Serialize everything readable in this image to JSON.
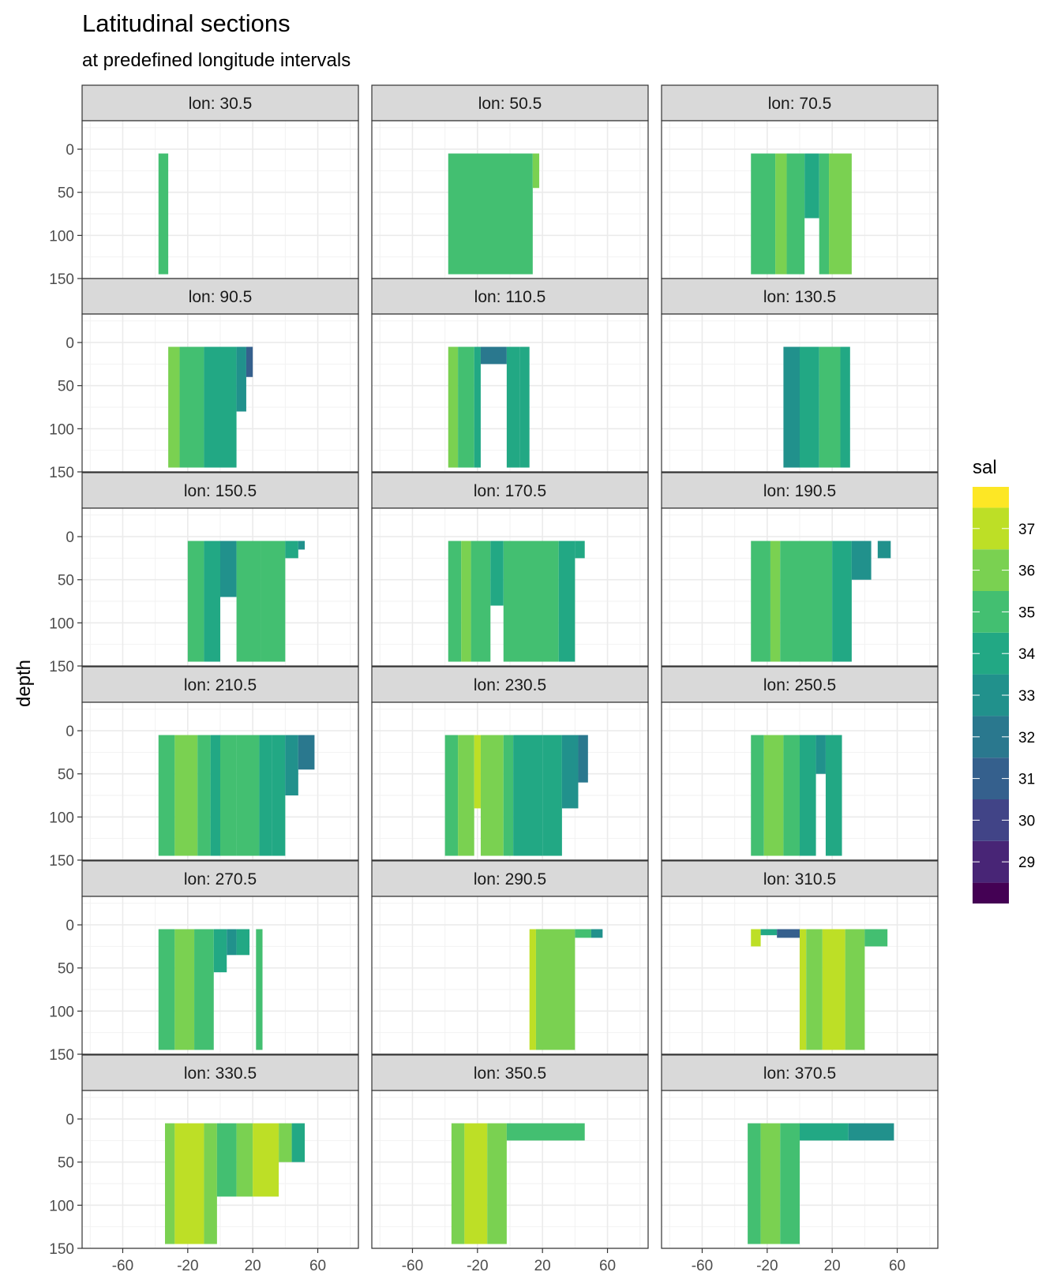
{
  "chart_data": {
    "type": "heatmap",
    "title": "Latitudinal sections",
    "subtitle": "at predefined longitude intervals",
    "xlabel": "",
    "ylabel": "depth",
    "x_ticks": [
      -60,
      -20,
      20,
      60
    ],
    "y_ticks": [
      0,
      50,
      100,
      150
    ],
    "xlim": [
      -85,
      85
    ],
    "ylim": [
      150,
      -33
    ],
    "legend": {
      "title": "sal",
      "position": "right",
      "levels": [
        28.5,
        29.5,
        30.5,
        31.5,
        32.5,
        33.5,
        34.5,
        35.5,
        36.5,
        37.5
      ],
      "labels": [
        "29",
        "30",
        "31",
        "32",
        "33",
        "34",
        "35",
        "36",
        "37"
      ],
      "colors": [
        "#440154",
        "#482576",
        "#414487",
        "#35608d",
        "#2a788e",
        "#21918c",
        "#22a884",
        "#43bf71",
        "#7ad151",
        "#bddf26",
        "#fde725"
      ]
    },
    "panels": [
      {
        "strip": "lon: 30.5",
        "bands": [
          {
            "x0": -38,
            "x1": -32,
            "ytop": 5,
            "ybot": 145,
            "sal": 35
          }
        ]
      },
      {
        "strip": "lon: 50.5",
        "bands": [
          {
            "x0": -38,
            "x1": 14,
            "ytop": 5,
            "ybot": 145,
            "sal": 35
          },
          {
            "x0": 14,
            "x1": 18,
            "ytop": 5,
            "ybot": 45,
            "sal": 36
          }
        ]
      },
      {
        "strip": "lon: 70.5",
        "bands": [
          {
            "x0": -30,
            "x1": -15,
            "ytop": 5,
            "ybot": 145,
            "sal": 35
          },
          {
            "x0": -15,
            "x1": -8,
            "ytop": 5,
            "ybot": 145,
            "sal": 36
          },
          {
            "x0": -8,
            "x1": 3,
            "ytop": 5,
            "ybot": 145,
            "sal": 35
          },
          {
            "x0": 3,
            "x1": 12,
            "ytop": 5,
            "ybot": 80,
            "sal": 34
          },
          {
            "x0": 12,
            "x1": 18,
            "ytop": 5,
            "ybot": 145,
            "sal": 35
          },
          {
            "x0": 18,
            "x1": 32,
            "ytop": 5,
            "ybot": 145,
            "sal": 36
          }
        ]
      },
      {
        "strip": "lon: 90.5",
        "bands": [
          {
            "x0": -32,
            "x1": -25,
            "ytop": 5,
            "ybot": 145,
            "sal": 36
          },
          {
            "x0": -25,
            "x1": -10,
            "ytop": 5,
            "ybot": 145,
            "sal": 35
          },
          {
            "x0": -10,
            "x1": 0,
            "ytop": 5,
            "ybot": 145,
            "sal": 34
          },
          {
            "x0": 0,
            "x1": 10,
            "ytop": 5,
            "ybot": 145,
            "sal": 34
          },
          {
            "x0": 10,
            "x1": 16,
            "ytop": 5,
            "ybot": 80,
            "sal": 33
          },
          {
            "x0": 16,
            "x1": 20,
            "ytop": 5,
            "ybot": 40,
            "sal": 31
          }
        ]
      },
      {
        "strip": "lon: 110.5",
        "bands": [
          {
            "x0": -38,
            "x1": -32,
            "ytop": 5,
            "ybot": 145,
            "sal": 36
          },
          {
            "x0": -32,
            "x1": -22,
            "ytop": 5,
            "ybot": 145,
            "sal": 35
          },
          {
            "x0": -22,
            "x1": -18,
            "ytop": 5,
            "ybot": 145,
            "sal": 34
          },
          {
            "x0": -18,
            "x1": -2,
            "ytop": 5,
            "ybot": 25,
            "sal": 32
          },
          {
            "x0": -2,
            "x1": 6,
            "ytop": 5,
            "ybot": 145,
            "sal": 34
          },
          {
            "x0": 6,
            "x1": 12,
            "ytop": 5,
            "ybot": 145,
            "sal": 34
          }
        ]
      },
      {
        "strip": "lon: 130.5",
        "bands": [
          {
            "x0": -10,
            "x1": 0,
            "ytop": 5,
            "ybot": 145,
            "sal": 33
          },
          {
            "x0": 0,
            "x1": 12,
            "ytop": 5,
            "ybot": 145,
            "sal": 34
          },
          {
            "x0": 12,
            "x1": 25,
            "ytop": 5,
            "ybot": 145,
            "sal": 35
          },
          {
            "x0": 25,
            "x1": 31,
            "ytop": 5,
            "ybot": 145,
            "sal": 34
          }
        ]
      },
      {
        "strip": "lon: 150.5",
        "bands": [
          {
            "x0": -20,
            "x1": -10,
            "ytop": 5,
            "ybot": 145,
            "sal": 35
          },
          {
            "x0": -10,
            "x1": 0,
            "ytop": 5,
            "ybot": 145,
            "sal": 34
          },
          {
            "x0": 0,
            "x1": 10,
            "ytop": 5,
            "ybot": 70,
            "sal": 33
          },
          {
            "x0": 10,
            "x1": 25,
            "ytop": 5,
            "ybot": 145,
            "sal": 35
          },
          {
            "x0": 25,
            "x1": 40,
            "ytop": 5,
            "ybot": 145,
            "sal": 35
          },
          {
            "x0": 40,
            "x1": 48,
            "ytop": 5,
            "ybot": 25,
            "sal": 34
          },
          {
            "x0": 48,
            "x1": 52,
            "ytop": 5,
            "ybot": 15,
            "sal": 33
          }
        ]
      },
      {
        "strip": "lon: 170.5",
        "bands": [
          {
            "x0": -38,
            "x1": -30,
            "ytop": 5,
            "ybot": 145,
            "sal": 35
          },
          {
            "x0": -30,
            "x1": -24,
            "ytop": 5,
            "ybot": 145,
            "sal": 36
          },
          {
            "x0": -24,
            "x1": -12,
            "ytop": 5,
            "ybot": 145,
            "sal": 35
          },
          {
            "x0": -12,
            "x1": -4,
            "ytop": 5,
            "ybot": 80,
            "sal": 34
          },
          {
            "x0": -4,
            "x1": 30,
            "ytop": 5,
            "ybot": 145,
            "sal": 35
          },
          {
            "x0": 30,
            "x1": 40,
            "ytop": 5,
            "ybot": 145,
            "sal": 34
          },
          {
            "x0": 40,
            "x1": 46,
            "ytop": 5,
            "ybot": 25,
            "sal": 34
          }
        ]
      },
      {
        "strip": "lon: 190.5",
        "bands": [
          {
            "x0": -30,
            "x1": -18,
            "ytop": 5,
            "ybot": 145,
            "sal": 35
          },
          {
            "x0": -18,
            "x1": -12,
            "ytop": 5,
            "ybot": 145,
            "sal": 36
          },
          {
            "x0": -12,
            "x1": 20,
            "ytop": 5,
            "ybot": 145,
            "sal": 35
          },
          {
            "x0": 20,
            "x1": 32,
            "ytop": 5,
            "ybot": 145,
            "sal": 34
          },
          {
            "x0": 32,
            "x1": 44,
            "ytop": 5,
            "ybot": 50,
            "sal": 33
          },
          {
            "x0": 48,
            "x1": 56,
            "ytop": 5,
            "ybot": 25,
            "sal": 33
          }
        ]
      },
      {
        "strip": "lon: 210.5",
        "bands": [
          {
            "x0": -38,
            "x1": -28,
            "ytop": 5,
            "ybot": 145,
            "sal": 35
          },
          {
            "x0": -28,
            "x1": -14,
            "ytop": 5,
            "ybot": 145,
            "sal": 36
          },
          {
            "x0": -14,
            "x1": -6,
            "ytop": 5,
            "ybot": 145,
            "sal": 35
          },
          {
            "x0": -6,
            "x1": 0,
            "ytop": 5,
            "ybot": 145,
            "sal": 34
          },
          {
            "x0": 0,
            "x1": 10,
            "ytop": 5,
            "ybot": 145,
            "sal": 35
          },
          {
            "x0": 10,
            "x1": 24,
            "ytop": 5,
            "ybot": 145,
            "sal": 35
          },
          {
            "x0": 24,
            "x1": 32,
            "ytop": 5,
            "ybot": 145,
            "sal": 34
          },
          {
            "x0": 32,
            "x1": 40,
            "ytop": 5,
            "ybot": 145,
            "sal": 34
          },
          {
            "x0": 40,
            "x1": 48,
            "ytop": 5,
            "ybot": 75,
            "sal": 33
          },
          {
            "x0": 48,
            "x1": 58,
            "ytop": 5,
            "ybot": 45,
            "sal": 32
          }
        ]
      },
      {
        "strip": "lon: 230.5",
        "bands": [
          {
            "x0": -40,
            "x1": -32,
            "ytop": 5,
            "ybot": 145,
            "sal": 35
          },
          {
            "x0": -32,
            "x1": -22,
            "ytop": 5,
            "ybot": 145,
            "sal": 36
          },
          {
            "x0": -22,
            "x1": -18,
            "ytop": 5,
            "ybot": 90,
            "sal": 37
          },
          {
            "x0": -18,
            "x1": -4,
            "ytop": 5,
            "ybot": 145,
            "sal": 36
          },
          {
            "x0": -4,
            "x1": 2,
            "ytop": 5,
            "ybot": 145,
            "sal": 35
          },
          {
            "x0": 2,
            "x1": 20,
            "ytop": 5,
            "ybot": 145,
            "sal": 34
          },
          {
            "x0": 20,
            "x1": 32,
            "ytop": 5,
            "ybot": 145,
            "sal": 34
          },
          {
            "x0": 32,
            "x1": 42,
            "ytop": 5,
            "ybot": 90,
            "sal": 33
          },
          {
            "x0": 42,
            "x1": 48,
            "ytop": 5,
            "ybot": 60,
            "sal": 32
          }
        ]
      },
      {
        "strip": "lon: 250.5",
        "bands": [
          {
            "x0": -30,
            "x1": -22,
            "ytop": 5,
            "ybot": 145,
            "sal": 35
          },
          {
            "x0": -22,
            "x1": -10,
            "ytop": 5,
            "ybot": 145,
            "sal": 36
          },
          {
            "x0": -10,
            "x1": 0,
            "ytop": 5,
            "ybot": 145,
            "sal": 35
          },
          {
            "x0": 0,
            "x1": 10,
            "ytop": 5,
            "ybot": 145,
            "sal": 34
          },
          {
            "x0": 10,
            "x1": 16,
            "ytop": 5,
            "ybot": 50,
            "sal": 33
          },
          {
            "x0": 16,
            "x1": 26,
            "ytop": 5,
            "ybot": 145,
            "sal": 34
          }
        ]
      },
      {
        "strip": "lon: 270.5",
        "bands": [
          {
            "x0": -38,
            "x1": -28,
            "ytop": 5,
            "ybot": 145,
            "sal": 35
          },
          {
            "x0": -28,
            "x1": -16,
            "ytop": 5,
            "ybot": 145,
            "sal": 36
          },
          {
            "x0": -16,
            "x1": -4,
            "ytop": 5,
            "ybot": 145,
            "sal": 35
          },
          {
            "x0": -4,
            "x1": 4,
            "ytop": 5,
            "ybot": 55,
            "sal": 34
          },
          {
            "x0": 4,
            "x1": 10,
            "ytop": 5,
            "ybot": 35,
            "sal": 33
          },
          {
            "x0": 10,
            "x1": 18,
            "ytop": 5,
            "ybot": 35,
            "sal": 34
          },
          {
            "x0": 22,
            "x1": 26,
            "ytop": 5,
            "ybot": 145,
            "sal": 35
          }
        ]
      },
      {
        "strip": "lon: 290.5",
        "bands": [
          {
            "x0": 12,
            "x1": 16,
            "ytop": 5,
            "ybot": 145,
            "sal": 37
          },
          {
            "x0": 16,
            "x1": 40,
            "ytop": 5,
            "ybot": 145,
            "sal": 36
          },
          {
            "x0": 40,
            "x1": 50,
            "ytop": 5,
            "ybot": 15,
            "sal": 35
          },
          {
            "x0": 50,
            "x1": 57,
            "ytop": 5,
            "ybot": 15,
            "sal": 33
          }
        ]
      },
      {
        "strip": "lon: 310.5",
        "bands": [
          {
            "x0": -30,
            "x1": -24,
            "ytop": 5,
            "ybot": 25,
            "sal": 37
          },
          {
            "x0": -24,
            "x1": -14,
            "ytop": 5,
            "ybot": 12,
            "sal": 34
          },
          {
            "x0": -14,
            "x1": 0,
            "ytop": 5,
            "ybot": 15,
            "sal": 31
          },
          {
            "x0": 0,
            "x1": 4,
            "ytop": 5,
            "ybot": 145,
            "sal": 37
          },
          {
            "x0": 4,
            "x1": 14,
            "ytop": 5,
            "ybot": 145,
            "sal": 36
          },
          {
            "x0": 14,
            "x1": 28,
            "ytop": 5,
            "ybot": 145,
            "sal": 37
          },
          {
            "x0": 28,
            "x1": 40,
            "ytop": 5,
            "ybot": 145,
            "sal": 36
          },
          {
            "x0": 40,
            "x1": 54,
            "ytop": 5,
            "ybot": 25,
            "sal": 35
          }
        ]
      },
      {
        "strip": "lon: 330.5",
        "bands": [
          {
            "x0": -34,
            "x1": -28,
            "ytop": 5,
            "ybot": 145,
            "sal": 36
          },
          {
            "x0": -28,
            "x1": -10,
            "ytop": 5,
            "ybot": 145,
            "sal": 37
          },
          {
            "x0": -10,
            "x1": -2,
            "ytop": 5,
            "ybot": 145,
            "sal": 36
          },
          {
            "x0": -2,
            "x1": 10,
            "ytop": 5,
            "ybot": 90,
            "sal": 35
          },
          {
            "x0": 10,
            "x1": 20,
            "ytop": 5,
            "ybot": 90,
            "sal": 36
          },
          {
            "x0": 20,
            "x1": 36,
            "ytop": 5,
            "ybot": 90,
            "sal": 37
          },
          {
            "x0": 36,
            "x1": 44,
            "ytop": 5,
            "ybot": 50,
            "sal": 36
          },
          {
            "x0": 44,
            "x1": 52,
            "ytop": 5,
            "ybot": 50,
            "sal": 34
          }
        ]
      },
      {
        "strip": "lon: 350.5",
        "bands": [
          {
            "x0": -36,
            "x1": -28,
            "ytop": 5,
            "ybot": 145,
            "sal": 36
          },
          {
            "x0": -28,
            "x1": -14,
            "ytop": 5,
            "ybot": 145,
            "sal": 37
          },
          {
            "x0": -14,
            "x1": -2,
            "ytop": 5,
            "ybot": 145,
            "sal": 36
          },
          {
            "x0": -2,
            "x1": 46,
            "ytop": 5,
            "ybot": 25,
            "sal": 35
          }
        ]
      },
      {
        "strip": "lon: 370.5",
        "bands": [
          {
            "x0": -32,
            "x1": -24,
            "ytop": 5,
            "ybot": 145,
            "sal": 35
          },
          {
            "x0": -24,
            "x1": -12,
            "ytop": 5,
            "ybot": 145,
            "sal": 36
          },
          {
            "x0": -12,
            "x1": 0,
            "ytop": 5,
            "ybot": 145,
            "sal": 35
          },
          {
            "x0": 0,
            "x1": 30,
            "ytop": 5,
            "ybot": 25,
            "sal": 34
          },
          {
            "x0": 30,
            "x1": 58,
            "ytop": 5,
            "ybot": 25,
            "sal": 33
          }
        ]
      }
    ]
  }
}
